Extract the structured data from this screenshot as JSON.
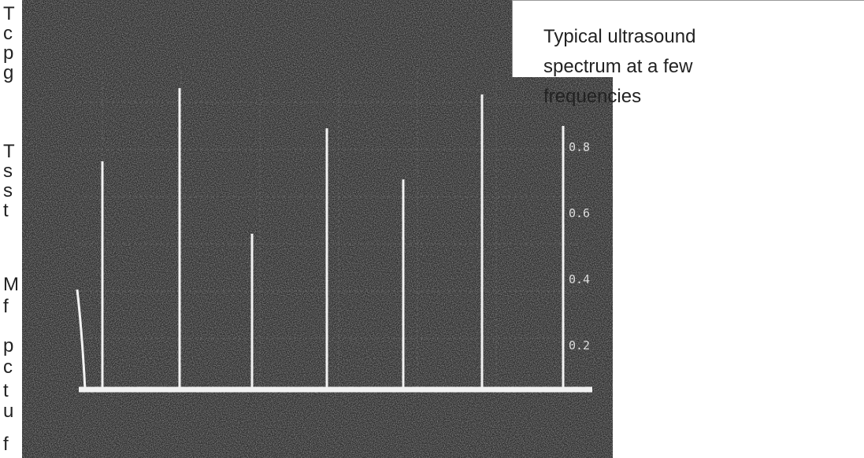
{
  "left_text_fragments": [
    "T",
    "c",
    "p",
    "g",
    "T",
    "s",
    "s",
    "t",
    "M",
    "f",
    "p",
    "c",
    "t",
    "u",
    "f"
  ],
  "scope_labels": [
    "0.8",
    "0.6",
    "0.4",
    "0.2"
  ],
  "caption": {
    "lines": [
      "Typical ultrasound",
      "spectrum at a few",
      "frequencies"
    ]
  }
}
